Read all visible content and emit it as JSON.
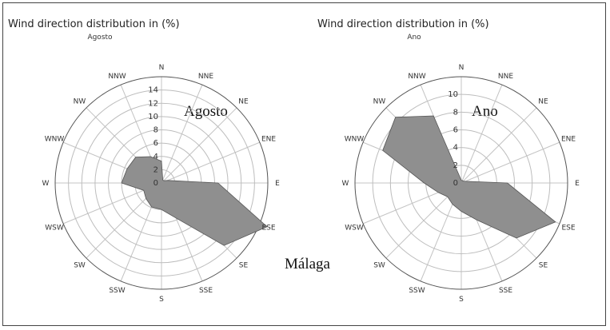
{
  "colors": {
    "fill": "#8f8f8f",
    "stroke": "#555555",
    "grid": "#bdbdbd"
  },
  "caption": "Málaga",
  "chart_data": [
    {
      "type": "radar",
      "title": "Wind direction distribution in (%)",
      "subtitle": "Agosto",
      "label": "Agosto",
      "directions": [
        "N",
        "NNE",
        "NE",
        "ENE",
        "E",
        "ESE",
        "SE",
        "SSE",
        "S",
        "SSW",
        "SW",
        "WSW",
        "W",
        "WNW",
        "NW",
        "NNW"
      ],
      "ticks": [
        "0",
        "2",
        "4",
        "6",
        "8",
        "10",
        "12",
        "14"
      ],
      "rmax": 16,
      "values": [
        3.3,
        0.5,
        0.5,
        1,
        8.5,
        17.2,
        13.3,
        5.7,
        4,
        3.9,
        3.3,
        2.9,
        6,
        5.6,
        5.5,
        4.3
      ]
    },
    {
      "type": "radar",
      "title": "Wind direction distribution in (%)",
      "subtitle": "Ano",
      "label": "Ano",
      "directions": [
        "N",
        "NNE",
        "NE",
        "ENE",
        "E",
        "ESE",
        "SE",
        "SSE",
        "S",
        "SSW",
        "SW",
        "WSW",
        "W",
        "WNW",
        "NW",
        "NNW"
      ],
      "ticks": [
        "0",
        "2",
        "4",
        "6",
        "8",
        "10"
      ],
      "rmax": 12,
      "values": [
        0.3,
        0.3,
        0.3,
        0.5,
        5.2,
        11.5,
        8.8,
        4.5,
        3.2,
        2.6,
        2.2,
        2.8,
        4.2,
        9.6,
        10.5,
        8.2
      ]
    }
  ]
}
